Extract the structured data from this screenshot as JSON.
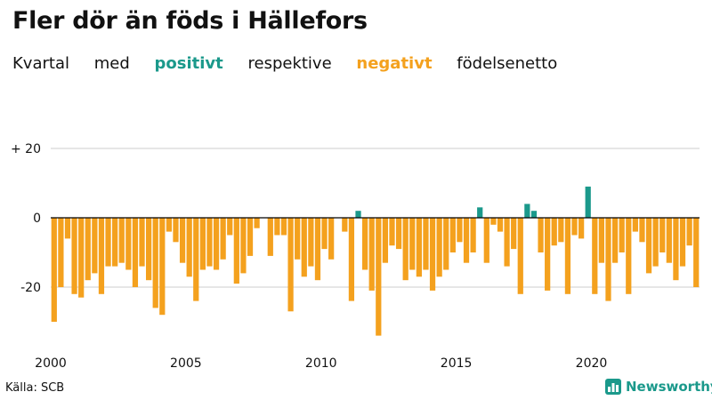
{
  "title": "Fler dör än föds i Hällefors",
  "subtitle": {
    "part1": "Kvartal",
    "part2": "med",
    "positive": "positivt",
    "part3": "respektive",
    "negative": "negativt",
    "part4": "födelsenetto"
  },
  "source": "Källa: SCB",
  "brand": "Newsworthy",
  "colors": {
    "positive": "#1b998b",
    "negative": "#f4a11e",
    "baseline": "#000000",
    "grid": "#cccccc"
  },
  "chart_data": {
    "type": "bar",
    "title": "Fler dör än föds i Hällefors",
    "xlabel": "",
    "ylabel": "",
    "x_start": 2000,
    "quarters_per_year": 4,
    "ylim": [
      -36,
      20
    ],
    "yticks": [
      20,
      0,
      -20
    ],
    "ytick_labels": [
      "+ 20",
      "0",
      "-20"
    ],
    "xticks": [
      2000,
      2005,
      2010,
      2015,
      2020
    ],
    "xtick_labels": [
      "2000",
      "2005",
      "2010",
      "2015",
      "2020"
    ],
    "values": [
      -30,
      -20,
      -6,
      -22,
      -23,
      -18,
      -16,
      -22,
      -14,
      -14,
      -13,
      -15,
      -20,
      -14,
      -18,
      -26,
      -28,
      -4,
      -7,
      -13,
      -17,
      -24,
      -15,
      -14,
      -15,
      -12,
      -5,
      -19,
      -16,
      -11,
      -3,
      0,
      -11,
      -5,
      -5,
      -27,
      -12,
      -17,
      -14,
      -18,
      -9,
      -12,
      0,
      -4,
      -24,
      2,
      -15,
      -21,
      -34,
      -13,
      -8,
      -9,
      -18,
      -15,
      -17,
      -15,
      -21,
      -17,
      -15,
      -10,
      -7,
      -13,
      -10,
      3,
      -13,
      -2,
      -4,
      -14,
      -9,
      -22,
      4,
      2,
      -10,
      -21,
      -8,
      -7,
      -22,
      -5,
      -6,
      9,
      -22,
      -13,
      -24,
      -13,
      -10,
      -22,
      -4,
      -7,
      -16,
      -14,
      -10,
      -13,
      -18,
      -14,
      -8,
      -20
    ]
  }
}
